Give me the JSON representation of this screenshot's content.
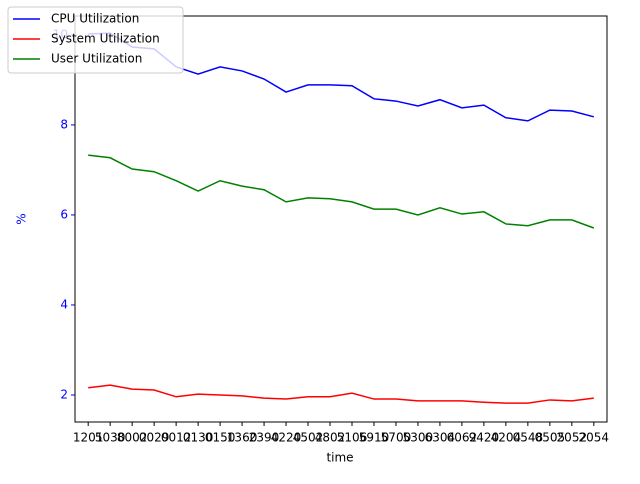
{
  "chart_data": {
    "type": "line",
    "xlabel": "time",
    "ylabel": "%",
    "categories": [
      "1201",
      "5030",
      "8002",
      "0029",
      "0012",
      "0130",
      "0150",
      "1360",
      "2390",
      "4220",
      "4502",
      "4802",
      "5106",
      "5910",
      "5700",
      "5300",
      "6304",
      "6062",
      "9420",
      "4204",
      "0548",
      "0505",
      "2052",
      "2054"
    ],
    "series": [
      {
        "name": "CPU Utilization",
        "color": "#0000ff",
        "values": [
          10.02,
          10.04,
          9.73,
          9.69,
          9.29,
          9.13,
          9.29,
          9.2,
          9.02,
          8.73,
          8.89,
          8.89,
          8.87,
          8.58,
          8.53,
          8.42,
          8.56,
          8.38,
          8.44,
          8.16,
          8.09,
          8.33,
          8.31,
          8.18
        ]
      },
      {
        "name": "System Utilization",
        "color": "#ff0000",
        "values": [
          2.16,
          2.22,
          2.13,
          2.11,
          1.96,
          2.02,
          2.0,
          1.98,
          1.93,
          1.91,
          1.96,
          1.96,
          2.04,
          1.91,
          1.91,
          1.87,
          1.87,
          1.87,
          1.84,
          1.82,
          1.82,
          1.89,
          1.87,
          1.93
        ]
      },
      {
        "name": "User Utilization",
        "color": "#008000",
        "values": [
          7.33,
          7.27,
          7.02,
          6.96,
          6.76,
          6.53,
          6.76,
          6.64,
          6.56,
          6.29,
          6.38,
          6.36,
          6.29,
          6.13,
          6.13,
          6.0,
          6.16,
          6.02,
          6.07,
          5.8,
          5.76,
          5.89,
          5.89,
          5.71
        ]
      }
    ],
    "ylim": [
      1.4,
      10.42
    ],
    "yticks": [
      2,
      4,
      6,
      8,
      10
    ],
    "ytick_color": "#0000ff",
    "legend": "upper left",
    "grid": false
  }
}
